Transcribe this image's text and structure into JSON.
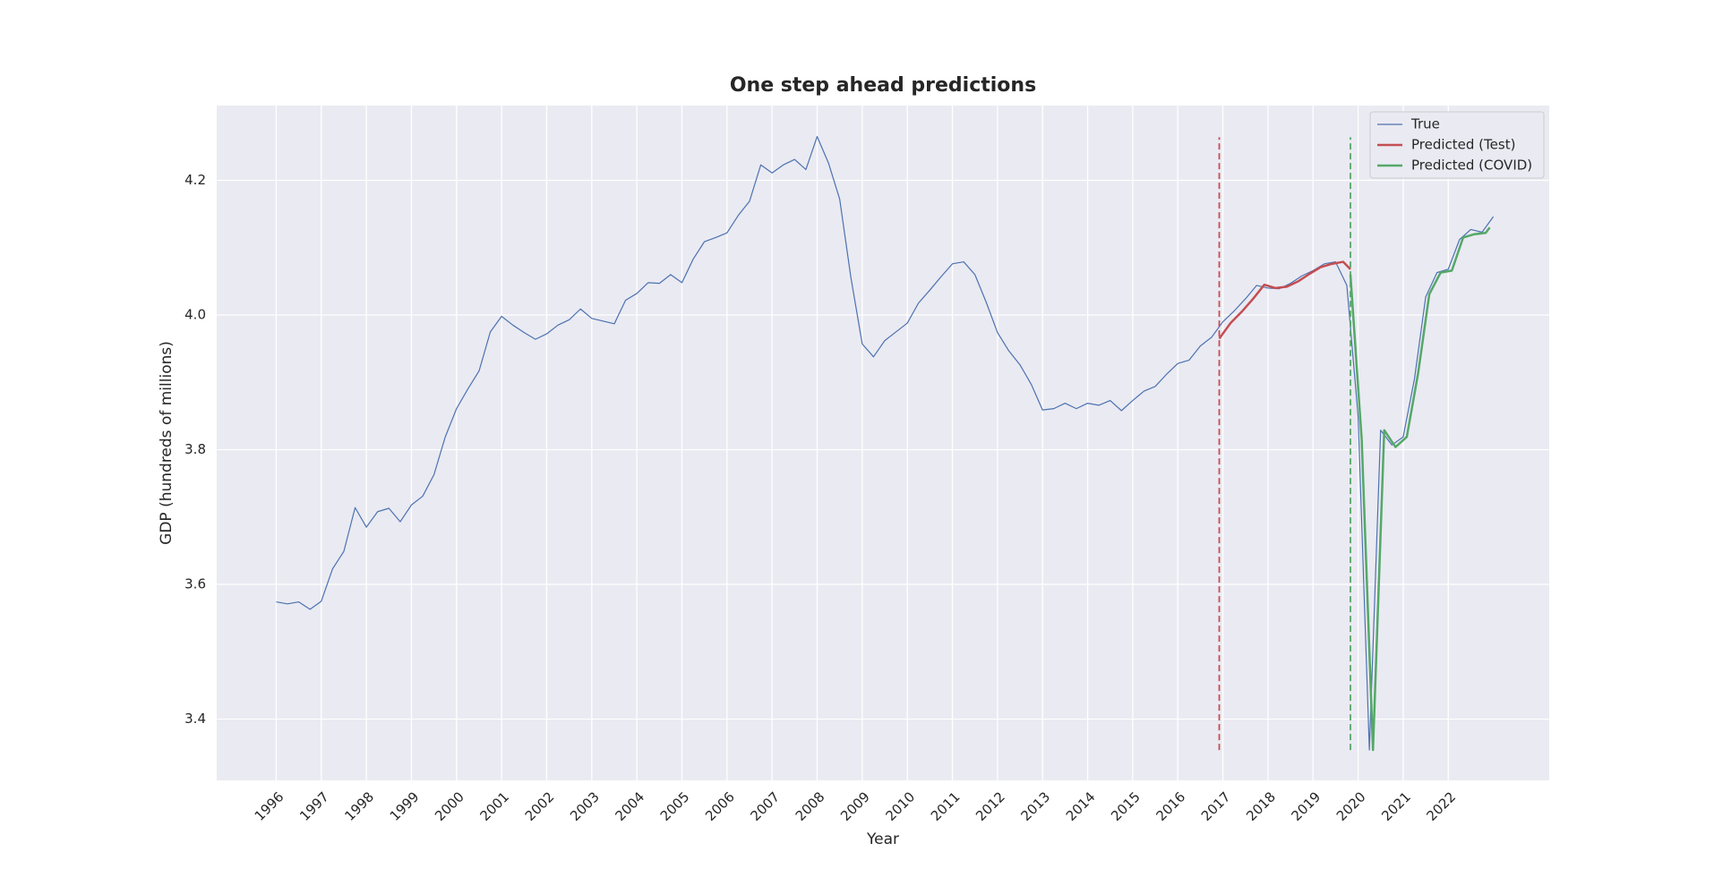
{
  "chart_data": {
    "type": "line",
    "title": "One step ahead predictions",
    "xlabel": "Year",
    "ylabel": "GDP (hundreds of millions)",
    "xlim": [
      1994.68,
      2024.24
    ],
    "ylim": [
      3.309,
      4.311
    ],
    "xticks": [
      1996,
      1997,
      1998,
      1999,
      2000,
      2001,
      2002,
      2003,
      2004,
      2005,
      2006,
      2007,
      2008,
      2009,
      2010,
      2011,
      2012,
      2013,
      2014,
      2015,
      2016,
      2017,
      2018,
      2019,
      2020,
      2021,
      2022
    ],
    "yticks": [
      3.4,
      3.6,
      3.8,
      {
        "value": 4,
        "label": "4.0"
      },
      4.2
    ],
    "grid": true,
    "legend": "upper right",
    "series": [
      {
        "name": "True",
        "color": "#4c72b0",
        "x": [
          1996,
          1996.25,
          1996.5,
          1996.75,
          1997,
          1997.25,
          1997.5,
          1997.75,
          1998,
          1998.25,
          1998.5,
          1998.75,
          1999,
          1999.25,
          1999.5,
          1999.75,
          2000,
          2000.25,
          2000.5,
          2000.75,
          2001,
          2001.25,
          2001.5,
          2001.75,
          2002,
          2002.25,
          2002.5,
          2002.75,
          2003,
          2003.25,
          2003.5,
          2003.75,
          2004,
          2004.25,
          2004.5,
          2004.75,
          2005,
          2005.25,
          2005.5,
          2005.75,
          2006,
          2006.25,
          2006.5,
          2006.75,
          2007,
          2007.25,
          2007.5,
          2007.75,
          2008,
          2008.25,
          2008.5,
          2008.75,
          2009,
          2009.25,
          2009.5,
          2009.75,
          2010,
          2010.25,
          2010.5,
          2010.75,
          2011,
          2011.25,
          2011.5,
          2011.75,
          2012,
          2012.25,
          2012.5,
          2012.75,
          2013,
          2013.25,
          2013.5,
          2013.75,
          2014,
          2014.25,
          2014.5,
          2014.75,
          2015,
          2015.25,
          2015.5,
          2015.75,
          2016,
          2016.25,
          2016.5,
          2016.75,
          2017,
          2017.25,
          2017.5,
          2017.75,
          2018,
          2018.25,
          2018.5,
          2018.75,
          2019,
          2019.25,
          2019.5,
          2019.75,
          2020,
          2020.25,
          2020.5,
          2020.75,
          2021,
          2021.25,
          2021.5,
          2021.75,
          2022,
          2022.25,
          2022.5,
          2022.75,
          2023
        ],
        "values": [
          3.574,
          3.571,
          3.574,
          3.563,
          3.575,
          3.623,
          3.649,
          3.714,
          3.685,
          3.708,
          3.713,
          3.693,
          3.718,
          3.731,
          3.763,
          3.819,
          3.861,
          3.89,
          3.917,
          3.975,
          3.998,
          3.985,
          3.974,
          3.964,
          3.972,
          3.985,
          3.993,
          4.009,
          3.995,
          3.991,
          3.987,
          4.022,
          4.032,
          4.048,
          4.047,
          4.06,
          4.048,
          4.083,
          4.109,
          4.115,
          4.122,
          4.148,
          4.169,
          4.223,
          4.211,
          4.223,
          4.231,
          4.216,
          4.265,
          4.226,
          4.172,
          4.055,
          3.957,
          3.938,
          3.962,
          3.975,
          3.988,
          4.018,
          4.037,
          4.057,
          4.076,
          4.079,
          4.06,
          4.019,
          3.974,
          3.947,
          3.926,
          3.897,
          3.859,
          3.861,
          3.869,
          3.861,
          3.869,
          3.866,
          3.873,
          3.858,
          3.873,
          3.887,
          3.894,
          3.912,
          3.928,
          3.933,
          3.954,
          3.967,
          3.99,
          4.006,
          4.024,
          4.044,
          4.04,
          4.039,
          4.047,
          4.058,
          4.066,
          4.076,
          4.079,
          4.044,
          3.85,
          3.354,
          3.829,
          3.807,
          3.819,
          3.905,
          4.027,
          4.063,
          4.068,
          4.112,
          4.127,
          4.123,
          4.146
        ]
      },
      {
        "name": "Predicted (Test)",
        "color": "#c44e52",
        "x": [
          2016.92,
          2017.17,
          2017.42,
          2017.67,
          2017.92,
          2018.17,
          2018.42,
          2018.67,
          2018.92,
          2019.17,
          2019.42,
          2019.67,
          2019.83
        ],
        "values": [
          3.965,
          3.988,
          4.005,
          4.024,
          4.045,
          4.04,
          4.042,
          4.05,
          4.061,
          4.071,
          4.076,
          4.079,
          4.068
        ]
      },
      {
        "name": "Predicted (COVID)",
        "color": "#55a868",
        "x": [
          2019.83,
          2020.08,
          2020.33,
          2020.58,
          2020.83,
          2021.08,
          2021.33,
          2021.58,
          2021.83,
          2022.08,
          2022.33,
          2022.58,
          2022.83,
          2022.92
        ],
        "values": [
          4.06,
          3.815,
          3.354,
          3.829,
          3.804,
          3.819,
          3.913,
          4.031,
          4.063,
          4.066,
          4.115,
          4.12,
          4.122,
          4.13
        ]
      }
    ],
    "vlines": [
      {
        "x": 2016.92,
        "ymin": 3.354,
        "ymax": 4.264,
        "color": "#c44e52"
      },
      {
        "x": 2019.83,
        "ymin": 3.354,
        "ymax": 4.264,
        "color": "#55a868"
      }
    ]
  }
}
